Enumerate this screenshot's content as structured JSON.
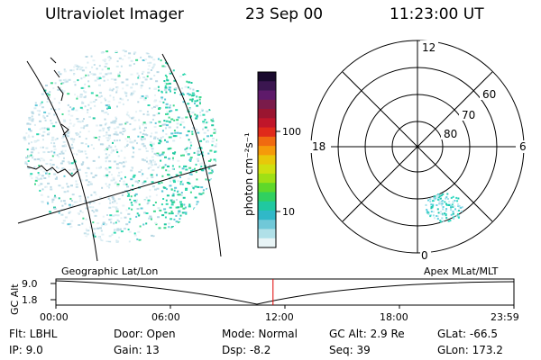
{
  "header": {
    "instrument": "Ultraviolet Imager",
    "date": "23 Sep 00",
    "time": "11:23:00 UT"
  },
  "colorbar": {
    "label": "photon cm⁻²s⁻¹",
    "ticks": [
      "100",
      "10"
    ],
    "colors": [
      "#1a0a2e",
      "#3b1650",
      "#5e1a6a",
      "#7a1b4a",
      "#9a1530",
      "#c0162a",
      "#e02a1a",
      "#f06a10",
      "#f59a0a",
      "#e8c80a",
      "#cfe010",
      "#9fe015",
      "#5fd82a",
      "#30d060",
      "#20c8a0",
      "#30b8c8",
      "#70c8d8",
      "#b0e0e8",
      "#e8f4f6"
    ]
  },
  "polar": {
    "lat_labels": [
      "60",
      "70",
      "80"
    ],
    "mlt_labels": {
      "top": "12",
      "bottom": "0",
      "left": "18",
      "right": "6"
    }
  },
  "timeline": {
    "left_label": "Geographic Lat/Lon",
    "right_label": "Apex MLat/MLT",
    "y_axis_label": "GC Alt",
    "y_ticks": [
      "9.0",
      "1.8"
    ],
    "x_ticks": [
      "00:00",
      "06:00",
      "12:00",
      "18:00",
      "23:59"
    ],
    "current_time_fraction": 0.474,
    "marker_color": "#e00000"
  },
  "info": {
    "flt": "Flt:  LBHL",
    "ip": "IP:  9.0",
    "door": "Door: Open",
    "gain": "Gain: 13",
    "mode": "Mode: Normal",
    "dsp": "Dsp:    -8.2",
    "gcalt": "GC Alt: 2.9 Re",
    "seq": "Seq: 39",
    "glat": "GLat: -66.5",
    "glon": "GLon: 173.2"
  }
}
